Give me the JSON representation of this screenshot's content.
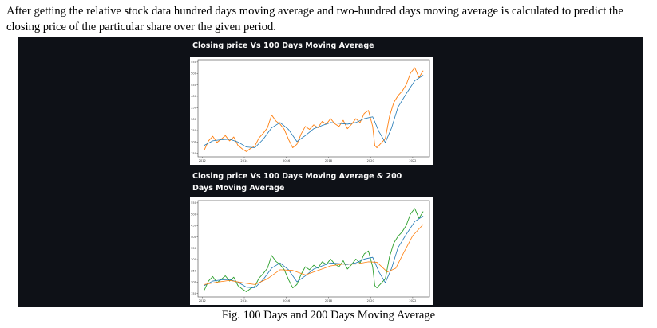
{
  "paragraph": "After getting the relative stock data hundred days moving average and two-hundred days moving average is calculated to predict the closing price of the particular share over the given period.",
  "caption": "Fig. 100 Days and 200 Days Moving Average",
  "colors": {
    "panel_bg": "#0e1117",
    "close_orange": "#ff7f0e",
    "close_green": "#2ca02c",
    "ma100_blue": "#1f77b4",
    "ma200_orange": "#ff7f0e"
  },
  "chart_data": [
    {
      "type": "line",
      "title": "Closing price Vs 100 Days Moving Average",
      "x_ticks": [
        "2012",
        "2014",
        "2016",
        "2018",
        "2020",
        "2022"
      ],
      "y_ticks": [
        "150",
        "200",
        "250",
        "300",
        "350",
        "400",
        "450",
        "500",
        "550"
      ],
      "xlim": [
        2011.8,
        2022.8
      ],
      "ylim": [
        135,
        560
      ],
      "series": [
        {
          "color": "#ff7f0e",
          "points": [
            [
              2012.1,
              165
            ],
            [
              2012.3,
              205
            ],
            [
              2012.5,
              225
            ],
            [
              2012.7,
              198
            ],
            [
              2012.9,
              212
            ],
            [
              2013.1,
              228
            ],
            [
              2013.3,
              205
            ],
            [
              2013.5,
              222
            ],
            [
              2013.7,
              185
            ],
            [
              2013.9,
              170
            ],
            [
              2014.1,
              158
            ],
            [
              2014.3,
              172
            ],
            [
              2014.5,
              182
            ],
            [
              2014.7,
              218
            ],
            [
              2014.9,
              238
            ],
            [
              2015.1,
              262
            ],
            [
              2015.3,
              318
            ],
            [
              2015.5,
              292
            ],
            [
              2015.7,
              278
            ],
            [
              2015.9,
              255
            ],
            [
              2016.1,
              212
            ],
            [
              2016.3,
              175
            ],
            [
              2016.5,
              190
            ],
            [
              2016.7,
              235
            ],
            [
              2016.9,
              268
            ],
            [
              2017.1,
              255
            ],
            [
              2017.3,
              275
            ],
            [
              2017.5,
              262
            ],
            [
              2017.7,
              290
            ],
            [
              2017.9,
              278
            ],
            [
              2018.1,
              302
            ],
            [
              2018.3,
              280
            ],
            [
              2018.5,
              268
            ],
            [
              2018.7,
              295
            ],
            [
              2018.9,
              258
            ],
            [
              2019.1,
              278
            ],
            [
              2019.3,
              302
            ],
            [
              2019.5,
              285
            ],
            [
              2019.7,
              325
            ],
            [
              2019.9,
              338
            ],
            [
              2020.1,
              268
            ],
            [
              2020.2,
              185
            ],
            [
              2020.3,
              175
            ],
            [
              2020.5,
              195
            ],
            [
              2020.7,
              215
            ],
            [
              2020.9,
              312
            ],
            [
              2021.1,
              372
            ],
            [
              2021.3,
              402
            ],
            [
              2021.5,
              422
            ],
            [
              2021.7,
              452
            ],
            [
              2021.9,
              502
            ],
            [
              2022.1,
              525
            ],
            [
              2022.3,
              482
            ],
            [
              2022.5,
              512
            ]
          ]
        },
        {
          "color": "#1f77b4",
          "points": [
            [
              2012.1,
              185
            ],
            [
              2012.5,
              205
            ],
            [
              2012.9,
              210
            ],
            [
              2013.3,
              212
            ],
            [
              2013.7,
              200
            ],
            [
              2014.1,
              178
            ],
            [
              2014.5,
              175
            ],
            [
              2014.9,
              212
            ],
            [
              2015.3,
              262
            ],
            [
              2015.7,
              285
            ],
            [
              2016.1,
              255
            ],
            [
              2016.5,
              202
            ],
            [
              2016.9,
              228
            ],
            [
              2017.3,
              258
            ],
            [
              2017.7,
              272
            ],
            [
              2018.1,
              285
            ],
            [
              2018.5,
              282
            ],
            [
              2018.9,
              278
            ],
            [
              2019.3,
              285
            ],
            [
              2019.7,
              302
            ],
            [
              2020.1,
              310
            ],
            [
              2020.4,
              245
            ],
            [
              2020.7,
              198
            ],
            [
              2021.0,
              262
            ],
            [
              2021.3,
              352
            ],
            [
              2021.7,
              412
            ],
            [
              2022.1,
              468
            ],
            [
              2022.5,
              492
            ]
          ]
        }
      ]
    },
    {
      "type": "line",
      "title": "Closing price Vs 100 Days Moving Average & 200 Days Moving Average",
      "x_ticks": [
        "2012",
        "2014",
        "2016",
        "2018",
        "2020",
        "2022"
      ],
      "y_ticks": [
        "150",
        "200",
        "250",
        "300",
        "350",
        "400",
        "450",
        "500",
        "550"
      ],
      "xlim": [
        2011.8,
        2022.8
      ],
      "ylim": [
        135,
        560
      ],
      "series": [
        {
          "color": "#2ca02c",
          "points": [
            [
              2012.1,
              165
            ],
            [
              2012.3,
              205
            ],
            [
              2012.5,
              225
            ],
            [
              2012.7,
              198
            ],
            [
              2012.9,
              212
            ],
            [
              2013.1,
              228
            ],
            [
              2013.3,
              205
            ],
            [
              2013.5,
              222
            ],
            [
              2013.7,
              185
            ],
            [
              2013.9,
              170
            ],
            [
              2014.1,
              158
            ],
            [
              2014.3,
              172
            ],
            [
              2014.5,
              182
            ],
            [
              2014.7,
              218
            ],
            [
              2014.9,
              238
            ],
            [
              2015.1,
              262
            ],
            [
              2015.3,
              318
            ],
            [
              2015.5,
              292
            ],
            [
              2015.7,
              278
            ],
            [
              2015.9,
              255
            ],
            [
              2016.1,
              212
            ],
            [
              2016.3,
              175
            ],
            [
              2016.5,
              190
            ],
            [
              2016.7,
              235
            ],
            [
              2016.9,
              268
            ],
            [
              2017.1,
              255
            ],
            [
              2017.3,
              275
            ],
            [
              2017.5,
              262
            ],
            [
              2017.7,
              290
            ],
            [
              2017.9,
              278
            ],
            [
              2018.1,
              302
            ],
            [
              2018.3,
              280
            ],
            [
              2018.5,
              268
            ],
            [
              2018.7,
              295
            ],
            [
              2018.9,
              258
            ],
            [
              2019.1,
              278
            ],
            [
              2019.3,
              302
            ],
            [
              2019.5,
              285
            ],
            [
              2019.7,
              325
            ],
            [
              2019.9,
              338
            ],
            [
              2020.1,
              268
            ],
            [
              2020.2,
              185
            ],
            [
              2020.3,
              175
            ],
            [
              2020.5,
              195
            ],
            [
              2020.7,
              215
            ],
            [
              2020.9,
              312
            ],
            [
              2021.1,
              372
            ],
            [
              2021.3,
              402
            ],
            [
              2021.5,
              422
            ],
            [
              2021.7,
              452
            ],
            [
              2021.9,
              502
            ],
            [
              2022.1,
              525
            ],
            [
              2022.3,
              482
            ],
            [
              2022.5,
              512
            ]
          ]
        },
        {
          "color": "#1f77b4",
          "points": [
            [
              2012.1,
              185
            ],
            [
              2012.5,
              205
            ],
            [
              2012.9,
              210
            ],
            [
              2013.3,
              212
            ],
            [
              2013.7,
              200
            ],
            [
              2014.1,
              178
            ],
            [
              2014.5,
              175
            ],
            [
              2014.9,
              212
            ],
            [
              2015.3,
              262
            ],
            [
              2015.7,
              285
            ],
            [
              2016.1,
              255
            ],
            [
              2016.5,
              202
            ],
            [
              2016.9,
              228
            ],
            [
              2017.3,
              258
            ],
            [
              2017.7,
              272
            ],
            [
              2018.1,
              285
            ],
            [
              2018.5,
              282
            ],
            [
              2018.9,
              278
            ],
            [
              2019.3,
              285
            ],
            [
              2019.7,
              302
            ],
            [
              2020.1,
              310
            ],
            [
              2020.4,
              245
            ],
            [
              2020.7,
              198
            ],
            [
              2021.0,
              262
            ],
            [
              2021.3,
              352
            ],
            [
              2021.7,
              412
            ],
            [
              2022.1,
              468
            ],
            [
              2022.5,
              492
            ]
          ]
        },
        {
          "color": "#ff7f0e",
          "points": [
            [
              2012.1,
              190
            ],
            [
              2012.7,
              200
            ],
            [
              2013.3,
              208
            ],
            [
              2013.9,
              198
            ],
            [
              2014.5,
              190
            ],
            [
              2015.1,
              215
            ],
            [
              2015.7,
              255
            ],
            [
              2016.3,
              252
            ],
            [
              2016.9,
              232
            ],
            [
              2017.5,
              252
            ],
            [
              2018.1,
              272
            ],
            [
              2018.7,
              280
            ],
            [
              2019.3,
              280
            ],
            [
              2019.9,
              290
            ],
            [
              2020.3,
              288
            ],
            [
              2020.8,
              245
            ],
            [
              2021.2,
              262
            ],
            [
              2021.6,
              335
            ],
            [
              2022.0,
              405
            ],
            [
              2022.5,
              455
            ]
          ]
        }
      ]
    }
  ]
}
